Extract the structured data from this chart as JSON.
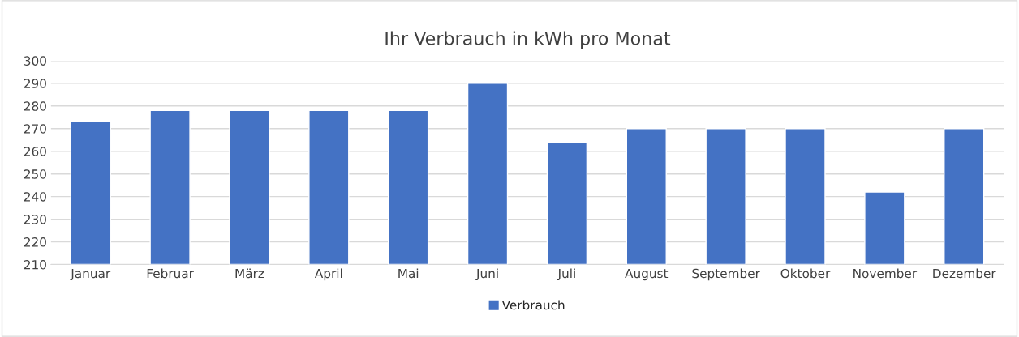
{
  "chart_data": {
    "type": "bar",
    "title": "Ihr Verbrauch in kWh pro Monat",
    "categories": [
      "Januar",
      "Februar",
      "März",
      "April",
      "Mai",
      "Juni",
      "Juli",
      "August",
      "September",
      "Oktober",
      "November",
      "Dezember"
    ],
    "series": [
      {
        "name": "Verbrauch",
        "color": "#4472c4",
        "values": [
          273,
          278,
          278,
          278,
          278,
          290,
          264,
          270,
          270,
          270,
          242,
          270
        ]
      }
    ],
    "ylim": [
      210,
      300
    ],
    "yticks": [
      210,
      220,
      230,
      240,
      250,
      260,
      270,
      280,
      290,
      300
    ],
    "grid": "y",
    "legend": "bottom"
  }
}
